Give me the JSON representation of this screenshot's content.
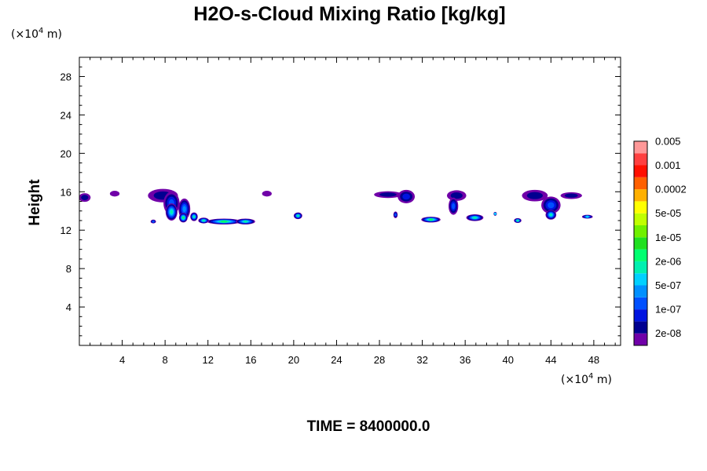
{
  "chart_data": {
    "type": "heatmap",
    "title": "H2O-s-Cloud Mixing Ratio [kg/kg]",
    "ylabel": "Height",
    "x_unit": "(×10",
    "x_unit_exp": "4",
    "x_unit_tail": " m)",
    "y_unit": "(×10",
    "y_unit_exp": "4",
    "y_unit_tail": " m)",
    "time_label": "TIME = 8400000.0",
    "xlim": [
      0,
      50.5
    ],
    "ylim": [
      0,
      30
    ],
    "xticks": [
      4,
      8,
      12,
      16,
      20,
      24,
      28,
      32,
      36,
      40,
      44,
      48
    ],
    "yticks": [
      4,
      8,
      12,
      16,
      20,
      24,
      28
    ],
    "colorbar": {
      "colors": [
        "#7000a8",
        "#000090",
        "#0014e0",
        "#0050ff",
        "#0090ff",
        "#00d0ff",
        "#00f0b0",
        "#00ff70",
        "#20e020",
        "#70f000",
        "#c0ff00",
        "#ffff00",
        "#ffb000",
        "#ff6000",
        "#ff1000",
        "#ff4040",
        "#ff9898"
      ],
      "labels": [
        "2e-08",
        "1e-07",
        "5e-07",
        "2e-06",
        "1e-05",
        "5e-05",
        "0.0002",
        "0.001",
        "0.005"
      ]
    },
    "regions": [
      {
        "x": 0.5,
        "y": 15.4,
        "sx": 0.55,
        "sy": 0.45,
        "level": 1
      },
      {
        "x": 3.3,
        "y": 15.8,
        "sx": 0.45,
        "sy": 0.3,
        "level": 0
      },
      {
        "x": 7.8,
        "y": 15.6,
        "sx": 1.4,
        "sy": 0.7,
        "level": 1
      },
      {
        "x": 8.6,
        "y": 14.8,
        "sx": 0.75,
        "sy": 1.2,
        "level": 3
      },
      {
        "x": 8.6,
        "y": 13.9,
        "sx": 0.55,
        "sy": 0.9,
        "level": 6
      },
      {
        "x": 9.8,
        "y": 14.2,
        "sx": 0.55,
        "sy": 1.1,
        "level": 4
      },
      {
        "x": 9.7,
        "y": 13.3,
        "sx": 0.4,
        "sy": 0.5,
        "level": 7
      },
      {
        "x": 10.7,
        "y": 13.4,
        "sx": 0.35,
        "sy": 0.45,
        "level": 6
      },
      {
        "x": 11.6,
        "y": 13.0,
        "sx": 0.5,
        "sy": 0.3,
        "level": 6
      },
      {
        "x": 13.5,
        "y": 12.9,
        "sx": 1.6,
        "sy": 0.3,
        "level": 7
      },
      {
        "x": 15.5,
        "y": 12.9,
        "sx": 0.9,
        "sy": 0.3,
        "level": 6
      },
      {
        "x": 6.9,
        "y": 12.9,
        "sx": 0.25,
        "sy": 0.2,
        "level": 3
      },
      {
        "x": 17.5,
        "y": 15.8,
        "sx": 0.45,
        "sy": 0.3,
        "level": 0
      },
      {
        "x": 20.4,
        "y": 13.5,
        "sx": 0.4,
        "sy": 0.35,
        "level": 6
      },
      {
        "x": 28.8,
        "y": 15.7,
        "sx": 1.3,
        "sy": 0.35,
        "level": 1
      },
      {
        "x": 30.5,
        "y": 15.5,
        "sx": 0.8,
        "sy": 0.7,
        "level": 2
      },
      {
        "x": 29.5,
        "y": 13.6,
        "sx": 0.2,
        "sy": 0.35,
        "level": 3
      },
      {
        "x": 32.8,
        "y": 13.1,
        "sx": 0.9,
        "sy": 0.3,
        "level": 7
      },
      {
        "x": 35.2,
        "y": 15.6,
        "sx": 0.9,
        "sy": 0.55,
        "level": 1
      },
      {
        "x": 34.9,
        "y": 14.5,
        "sx": 0.45,
        "sy": 0.9,
        "level": 3
      },
      {
        "x": 36.9,
        "y": 13.3,
        "sx": 0.8,
        "sy": 0.35,
        "level": 6
      },
      {
        "x": 38.8,
        "y": 13.7,
        "sx": 0.15,
        "sy": 0.2,
        "level": 5
      },
      {
        "x": 40.9,
        "y": 13.0,
        "sx": 0.35,
        "sy": 0.25,
        "level": 6
      },
      {
        "x": 42.5,
        "y": 15.6,
        "sx": 1.2,
        "sy": 0.6,
        "level": 1
      },
      {
        "x": 44.0,
        "y": 14.6,
        "sx": 0.9,
        "sy": 0.9,
        "level": 3
      },
      {
        "x": 44.0,
        "y": 13.6,
        "sx": 0.5,
        "sy": 0.5,
        "level": 6
      },
      {
        "x": 45.9,
        "y": 15.6,
        "sx": 1.0,
        "sy": 0.35,
        "level": 1
      },
      {
        "x": 47.4,
        "y": 13.4,
        "sx": 0.5,
        "sy": 0.2,
        "level": 5
      }
    ]
  }
}
